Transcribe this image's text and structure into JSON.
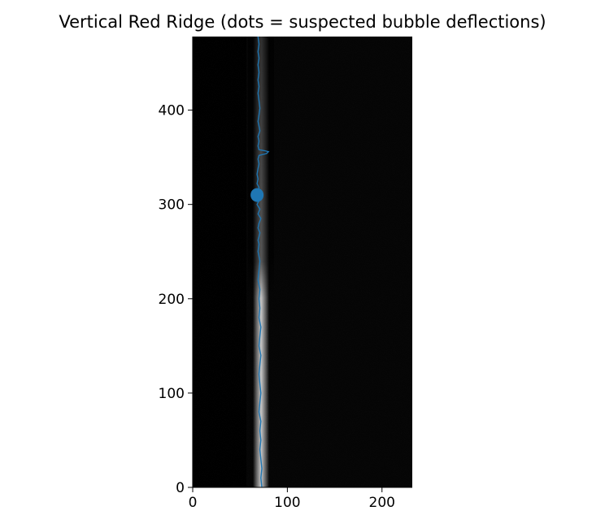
{
  "chart_data": {
    "type": "line",
    "title": "Vertical Red Ridge (dots = suspected bubble deflections)",
    "xlabel": "",
    "ylabel": "",
    "xlim": [
      0,
      232
    ],
    "ylim": [
      0,
      478
    ],
    "x_ticks": [
      0,
      100,
      200
    ],
    "y_ticks": [
      0,
      100,
      200,
      300,
      400
    ],
    "grid": false,
    "background": "grayscale image (black with a bright vertical streak near x = 70)",
    "series": [
      {
        "kind": "line",
        "color": "#1f77b4",
        "points": [
          [
            73,
            0
          ],
          [
            72,
            10
          ],
          [
            73,
            20
          ],
          [
            72,
            30
          ],
          [
            71,
            40
          ],
          [
            72,
            50
          ],
          [
            71,
            60
          ],
          [
            72,
            70
          ],
          [
            70,
            80
          ],
          [
            71,
            90
          ],
          [
            72,
            100
          ],
          [
            71,
            110
          ],
          [
            70,
            120
          ],
          [
            71,
            130
          ],
          [
            72,
            140
          ],
          [
            70,
            150
          ],
          [
            71,
            160
          ],
          [
            72,
            170
          ],
          [
            70,
            180
          ],
          [
            71,
            190
          ],
          [
            70,
            200
          ],
          [
            71,
            210
          ],
          [
            69,
            220
          ],
          [
            70,
            230
          ],
          [
            71,
            240
          ],
          [
            69,
            250
          ],
          [
            70,
            258
          ],
          [
            69,
            262
          ],
          [
            70,
            266
          ],
          [
            71,
            270
          ],
          [
            69,
            275
          ],
          [
            70,
            280
          ],
          [
            72,
            285
          ],
          [
            69,
            290
          ],
          [
            71,
            295
          ],
          [
            68,
            300
          ],
          [
            70,
            304
          ],
          [
            72,
            308
          ],
          [
            69,
            312
          ],
          [
            70,
            318
          ],
          [
            68,
            322
          ],
          [
            69,
            327
          ],
          [
            68,
            332
          ],
          [
            69,
            338
          ],
          [
            70,
            343
          ],
          [
            69,
            348
          ],
          [
            70,
            352
          ],
          [
            78,
            354
          ],
          [
            80,
            356
          ],
          [
            76,
            357
          ],
          [
            70,
            358
          ],
          [
            69,
            362
          ],
          [
            70,
            367
          ],
          [
            69,
            372
          ],
          [
            71,
            378
          ],
          [
            70,
            383
          ],
          [
            69,
            388
          ],
          [
            70,
            395
          ],
          [
            71,
            402
          ],
          [
            70,
            410
          ],
          [
            69,
            418
          ],
          [
            70,
            425
          ],
          [
            69,
            432
          ],
          [
            70,
            440
          ],
          [
            69,
            448
          ],
          [
            70,
            455
          ],
          [
            69,
            462
          ],
          [
            70,
            470
          ],
          [
            69,
            478
          ]
        ]
      },
      {
        "kind": "scatter",
        "color": "#1f77b4",
        "points": [
          [
            68,
            310
          ]
        ]
      }
    ]
  }
}
